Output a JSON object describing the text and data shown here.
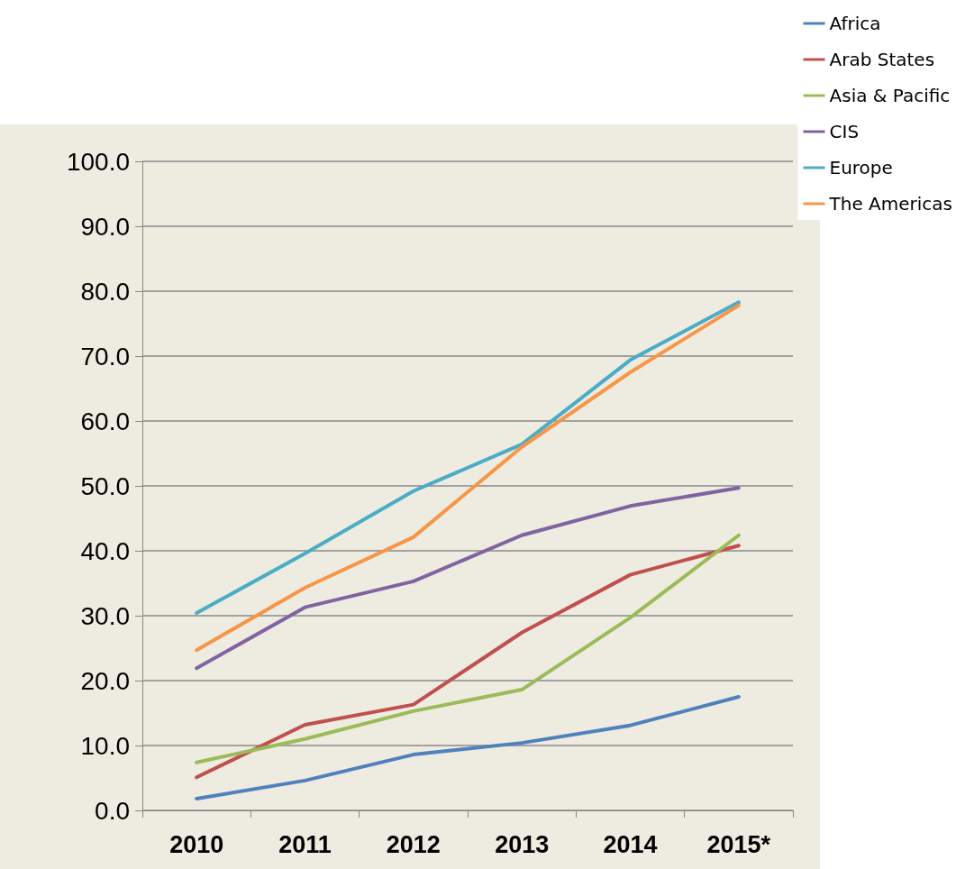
{
  "chart_data": {
    "type": "line",
    "categories": [
      "2010",
      "2011",
      "2012",
      "2013",
      "2014",
      "2015*"
    ],
    "series": [
      {
        "name": "Africa",
        "color": "#4f81bd",
        "values": [
          1.8,
          4.6,
          8.6,
          10.4,
          13.1,
          17.5
        ]
      },
      {
        "name": "Arab States",
        "color": "#c0504d",
        "values": [
          5.1,
          13.2,
          16.3,
          27.4,
          36.3,
          40.8
        ]
      },
      {
        "name": "Asia & Pacific",
        "color": "#9bbb59",
        "values": [
          7.4,
          11.0,
          15.3,
          18.6,
          29.7,
          42.4
        ]
      },
      {
        "name": "CIS",
        "color": "#8064a2",
        "values": [
          21.9,
          31.3,
          35.3,
          42.4,
          46.9,
          49.7
        ]
      },
      {
        "name": "Europe",
        "color": "#4bacc6",
        "values": [
          30.4,
          39.6,
          49.2,
          56.4,
          69.4,
          78.3
        ]
      },
      {
        "name": "The Americas",
        "color": "#f79646",
        "values": [
          24.7,
          34.3,
          42.1,
          56.0,
          67.5,
          77.8
        ]
      }
    ],
    "ylim": [
      0,
      100
    ],
    "yticks": [
      {
        "value": 0,
        "label": "0.0"
      },
      {
        "value": 10,
        "label": "10.0"
      },
      {
        "value": 20,
        "label": "20.0"
      },
      {
        "value": 30,
        "label": "30.0"
      },
      {
        "value": 40,
        "label": "40.0"
      },
      {
        "value": 50,
        "label": "50.0"
      },
      {
        "value": 60,
        "label": "60.0"
      },
      {
        "value": 70,
        "label": "70.0"
      },
      {
        "value": 80,
        "label": "80.0"
      },
      {
        "value": 90,
        "label": "90.0"
      },
      {
        "value": 100,
        "label": "100.0"
      }
    ],
    "grid": "y",
    "legend": "top right",
    "marker": "none",
    "line_style": "solid"
  }
}
